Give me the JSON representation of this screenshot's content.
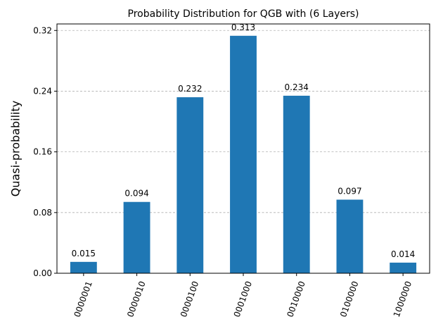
{
  "chart_data": {
    "type": "bar",
    "title": "Probability Distribution for QGB with (6 Layers)",
    "xlabel": "",
    "ylabel": "Quasi-probability",
    "categories": [
      "0000001",
      "0000010",
      "0000100",
      "0001000",
      "0010000",
      "0100000",
      "1000000"
    ],
    "values": [
      0.015,
      0.094,
      0.232,
      0.313,
      0.234,
      0.097,
      0.014
    ],
    "data_labels": [
      "0.015",
      "0.094",
      "0.232",
      "0.313",
      "0.234",
      "0.097",
      "0.014"
    ],
    "ylim": [
      0,
      0.3286
    ],
    "yticks": [
      0.0,
      0.08,
      0.16,
      0.24,
      0.32
    ],
    "ytick_labels": [
      "0.00",
      "0.08",
      "0.16",
      "0.24",
      "0.32"
    ],
    "grid": "horizontal dashed",
    "bar_color": "#1f77b4",
    "grid_color": "#b0b0b0"
  }
}
